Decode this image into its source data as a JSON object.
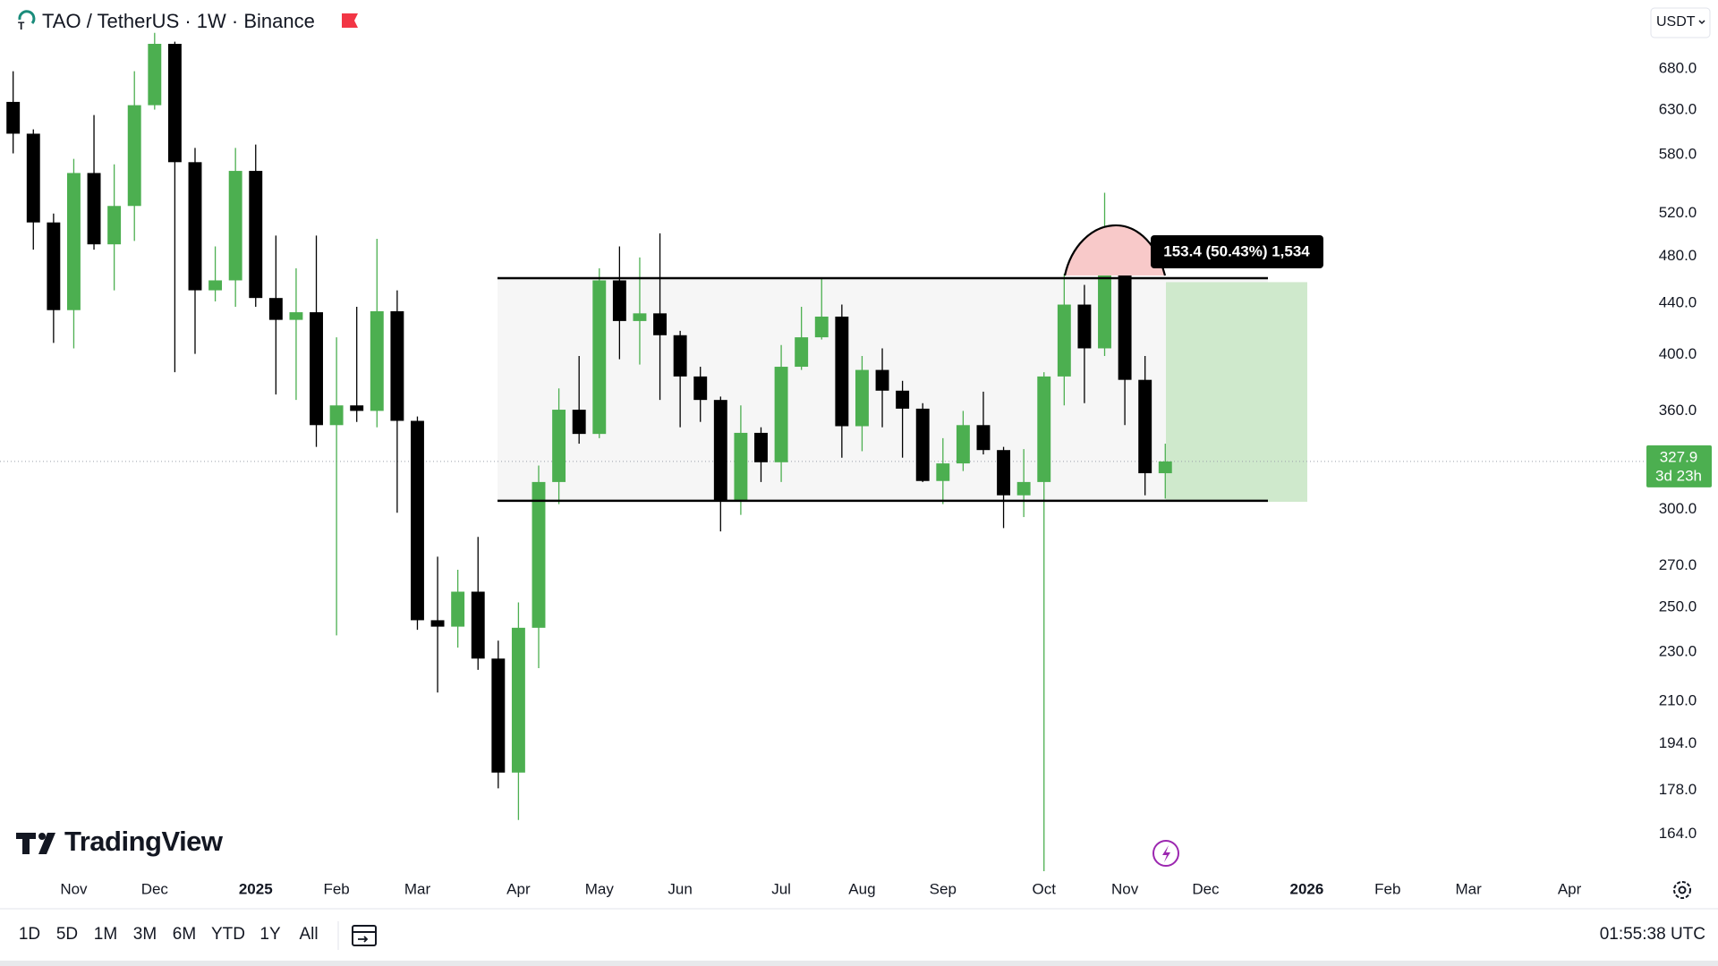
{
  "header": {
    "title": "TAO / TetherUS · 1W · Binance",
    "currency": "USDT"
  },
  "chart_data": {
    "type": "candlestick",
    "open": [
      639.7,
      603.0,
      511.3,
      434.4,
      560.5,
      490.9,
      527.2,
      635.8,
      712.6,
      571.9,
      450.7,
      459.1,
      562.7,
      444.3,
      426.6,
      432.7,
      350.8,
      363.9,
      360.2,
      433.5,
      353.6,
      244.1,
      241.2,
      257.4,
      227.3,
      183.9,
      240.7,
      315.6,
      361.0,
      345.1,
      459.1,
      425.7,
      431.8,
      414.6,
      384.0,
      367.6,
      304.8,
      345.8,
      327.4,
      391.0,
      413.0,
      429.2,
      350.1,
      388.7,
      374.0,
      361.7,
      316.2,
      326.7,
      350.8,
      334.9,
      307.9,
      315.6,
      384.0,
      438.9,
      404.6,
      488.1,
      381.6,
      320.8
    ],
    "high": [
      677.2,
      607.9,
      519.8,
      575.4,
      624.3,
      569.6,
      677.2,
      727.3,
      715.5,
      587.3,
      489.0,
      587.3,
      590.9,
      499.0,
      469.5,
      499.0,
      413.0,
      437.1,
      496.0,
      450.7,
      356.5,
      274.7,
      268.1,
      285.0,
      235.0,
      252.3,
      325.4,
      375.6,
      398.9,
      469.5,
      489.0,
      479.1,
      501.0,
      418.0,
      391.0,
      369.9,
      363.9,
      349.4,
      407.1,
      437.1,
      460.3,
      438.9,
      398.9,
      404.6,
      380.9,
      365.4,
      342.4,
      360.2,
      373.3,
      336.9,
      335.5,
      387.1,
      464.7,
      455.3,
      540.3,
      504.1,
      398.9,
      338.9
    ],
    "low": [
      581.3,
      486.1,
      408.7,
      404.6,
      486.1,
      450.7,
      494.0,
      630.6,
      387.1,
      400.5,
      441.5,
      437.1,
      437.1,
      371.4,
      367.6,
      336.9,
      237.3,
      352.9,
      349.4,
      298.1,
      239.8,
      213.4,
      232.0,
      222.6,
      178.6,
      168.4,
      223.3,
      302.9,
      338.9,
      342.4,
      396.5,
      392.6,
      367.6,
      349.4,
      352.9,
      287.9,
      296.9,
      315.6,
      315.6,
      388.7,
      411.3,
      330.2,
      334.2,
      349.4,
      330.2,
      315.6,
      302.9,
      322.1,
      332.2,
      289.7,
      295.7,
      153.1,
      363.9,
      365.4,
      398.9,
      350.8,
      307.9,
      306.0
    ],
    "close": [
      603.0,
      511.3,
      434.4,
      560.5,
      490.9,
      527.2,
      635.8,
      712.6,
      571.9,
      450.7,
      459.1,
      562.7,
      444.3,
      426.6,
      432.7,
      350.8,
      363.9,
      360.2,
      433.5,
      353.6,
      244.1,
      241.2,
      257.4,
      227.3,
      183.9,
      240.7,
      315.6,
      361.0,
      345.1,
      459.1,
      425.7,
      431.8,
      414.6,
      384.0,
      367.6,
      304.8,
      345.8,
      327.4,
      391.0,
      413.0,
      429.2,
      350.1,
      388.7,
      374.0,
      361.7,
      316.2,
      326.7,
      350.8,
      334.9,
      307.9,
      315.6,
      384.0,
      438.9,
      404.6,
      488.1,
      381.6,
      320.8,
      327.9
    ],
    "up_color": "#4caf50",
    "down_color": "#000000",
    "log_scale": true,
    "grid": false,
    "ylim": [
      153.1,
      773.1
    ],
    "yticks": [
      {
        "value": 680,
        "label": "680.0"
      },
      {
        "value": 630,
        "label": "630.0"
      },
      {
        "value": 580,
        "label": "580.0"
      },
      {
        "value": 520,
        "label": "520.0"
      },
      {
        "value": 480,
        "label": "480.0"
      },
      {
        "value": 440,
        "label": "440.0"
      },
      {
        "value": 400,
        "label": "400.0"
      },
      {
        "value": 360,
        "label": "360.0"
      },
      {
        "value": 300,
        "label": "300.0"
      },
      {
        "value": 270,
        "label": "270.0"
      },
      {
        "value": 250,
        "label": "250.0"
      },
      {
        "value": 230,
        "label": "230.0"
      },
      {
        "value": 210,
        "label": "210.0"
      },
      {
        "value": 194,
        "label": "194.0"
      },
      {
        "value": 178,
        "label": "178.0"
      },
      {
        "value": 164,
        "label": "164.0"
      }
    ],
    "xlim": [
      -0.65,
      80.76
    ],
    "xticks": [
      {
        "value": 3,
        "label": "Nov"
      },
      {
        "value": 7,
        "label": "Dec"
      },
      {
        "value": 12,
        "label": "2025"
      },
      {
        "value": 16,
        "label": "Feb"
      },
      {
        "value": 20,
        "label": "Mar"
      },
      {
        "value": 25,
        "label": "Apr"
      },
      {
        "value": 29,
        "label": "May"
      },
      {
        "value": 33,
        "label": "Jun"
      },
      {
        "value": 38,
        "label": "Jul"
      },
      {
        "value": 42,
        "label": "Aug"
      },
      {
        "value": 46,
        "label": "Sep"
      },
      {
        "value": 51,
        "label": "Oct"
      },
      {
        "value": 55,
        "label": "Nov"
      },
      {
        "value": 59,
        "label": "Dec"
      },
      {
        "value": 64,
        "label": "2026"
      },
      {
        "value": 68,
        "label": "Feb"
      },
      {
        "value": 72,
        "label": "Mar"
      },
      {
        "value": 77,
        "label": "Apr"
      }
    ],
    "last_price": {
      "value": 327.9,
      "label": "327.9"
    },
    "countdown": "3d 23h",
    "range": {
      "top": 461,
      "bottom": 304.8
    },
    "measure": {
      "from": 304.2,
      "to": 457.6,
      "label": "153.4 (50.43%) 1,534"
    }
  },
  "branding": "TradingView",
  "toolbar": {
    "ranges": [
      "1D",
      "5D",
      "1M",
      "3M",
      "6M",
      "YTD",
      "1Y",
      "All"
    ],
    "clock": "01:55:38 UTC"
  }
}
